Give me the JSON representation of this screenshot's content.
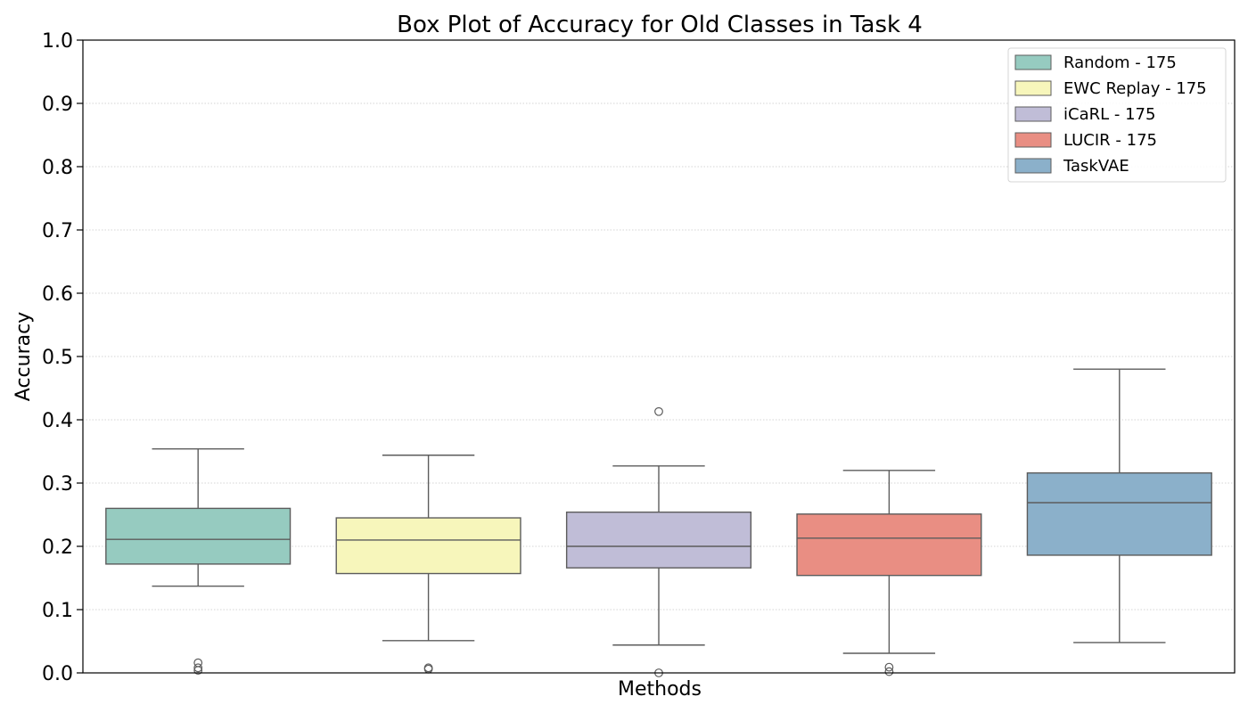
{
  "chart_data": {
    "type": "box",
    "title": "Box Plot of Accuracy for Old Classes in Task 4",
    "xlabel": "Methods",
    "ylabel": "Accuracy",
    "ylim": [
      0,
      1.0
    ],
    "yticks": [
      "0.0",
      "0.1",
      "0.2",
      "0.3",
      "0.4",
      "0.5",
      "0.6",
      "0.7",
      "0.8",
      "0.9",
      "1.0"
    ],
    "grid": "horizontal dotted",
    "legend_position": "top-right",
    "series": [
      {
        "name": "Random - 175",
        "color": "#96cbc0",
        "whisker_low": 0.137,
        "q1": 0.172,
        "median": 0.211,
        "q3": 0.26,
        "whisker_high": 0.354,
        "outliers": [
          0.016,
          0.008,
          0.004
        ]
      },
      {
        "name": "EWC Replay - 175",
        "color": "#f7f6bb",
        "whisker_low": 0.051,
        "q1": 0.157,
        "median": 0.21,
        "q3": 0.245,
        "whisker_high": 0.344,
        "outliers": [
          0.008,
          0.006
        ]
      },
      {
        "name": "iCaRL - 175",
        "color": "#c0bdd7",
        "whisker_low": 0.044,
        "q1": 0.166,
        "median": 0.2,
        "q3": 0.254,
        "whisker_high": 0.327,
        "outliers": [
          0.413,
          0.0
        ]
      },
      {
        "name": "LUCIR - 175",
        "color": "#e98e83",
        "whisker_low": 0.031,
        "q1": 0.154,
        "median": 0.213,
        "q3": 0.251,
        "whisker_high": 0.32,
        "outliers": [
          0.009,
          0.002
        ]
      },
      {
        "name": "TaskVAE",
        "color": "#8bb0ca",
        "whisker_low": 0.048,
        "q1": 0.186,
        "median": 0.269,
        "q3": 0.316,
        "whisker_high": 0.48,
        "outliers": []
      }
    ]
  }
}
